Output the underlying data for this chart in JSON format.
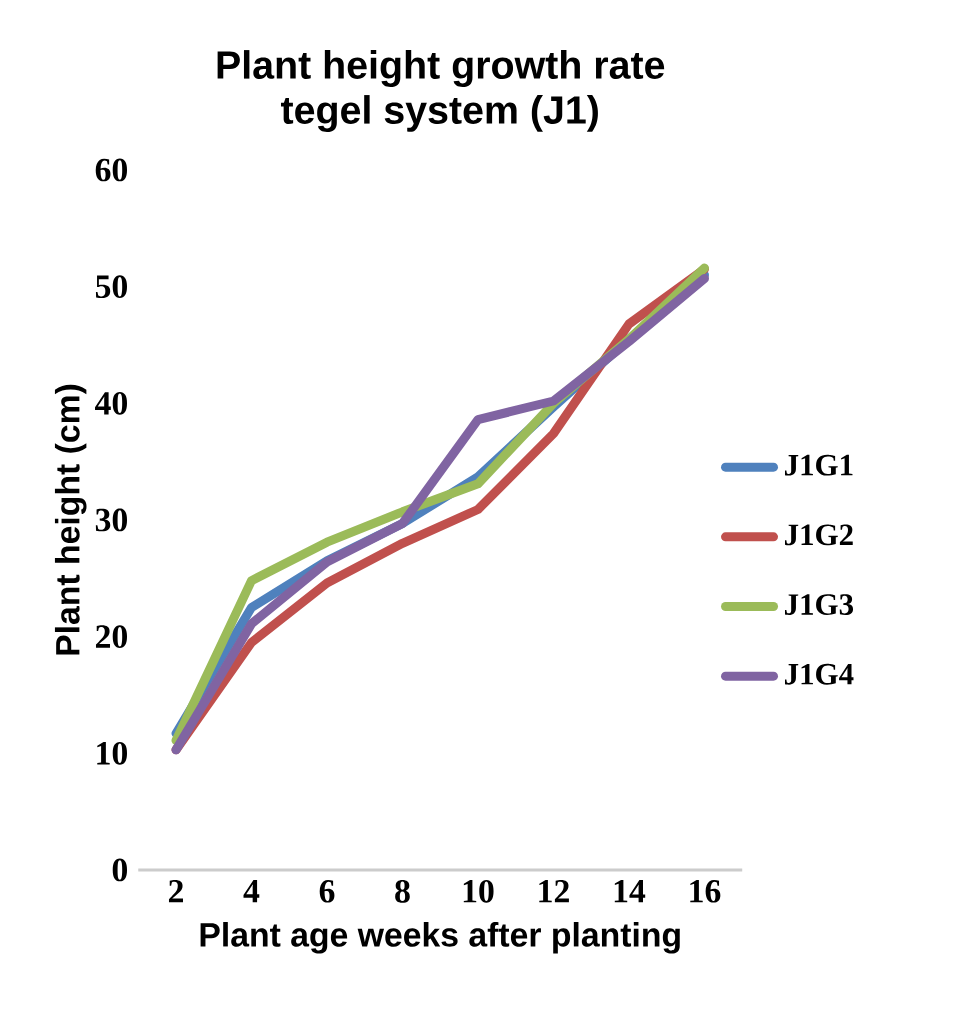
{
  "chart_data": {
    "type": "line",
    "title": "Plant height growth rate\ntegel system (J1)",
    "xlabel": "Plant age weeks after planting",
    "ylabel": "Plant height (cm)",
    "categories": [
      "2",
      "4",
      "6",
      "8",
      "10",
      "12",
      "14",
      "16"
    ],
    "series": [
      {
        "name": "J1G1",
        "color": "#4f81bd",
        "values": [
          11.7,
          22.5,
          26.5,
          29.7,
          33.7,
          39.7,
          45.5,
          51.0
        ]
      },
      {
        "name": "J1G2",
        "color": "#c0504d",
        "values": [
          10.3,
          19.5,
          24.6,
          28.0,
          30.9,
          37.4,
          46.8,
          51.5
        ]
      },
      {
        "name": "J1G3",
        "color": "#9bbb59",
        "values": [
          11.1,
          24.8,
          28.1,
          30.7,
          33.1,
          40.0,
          45.5,
          51.6
        ]
      },
      {
        "name": "J1G4",
        "color": "#8064a2",
        "values": [
          10.3,
          21.1,
          26.4,
          29.7,
          38.6,
          40.2,
          45.3,
          50.7
        ]
      }
    ],
    "ylim": [
      0,
      60
    ],
    "yticks": [
      0,
      10,
      20,
      30,
      40,
      50,
      60
    ],
    "grid": false,
    "legend": "right",
    "marker": "none",
    "line_style": "solid"
  }
}
